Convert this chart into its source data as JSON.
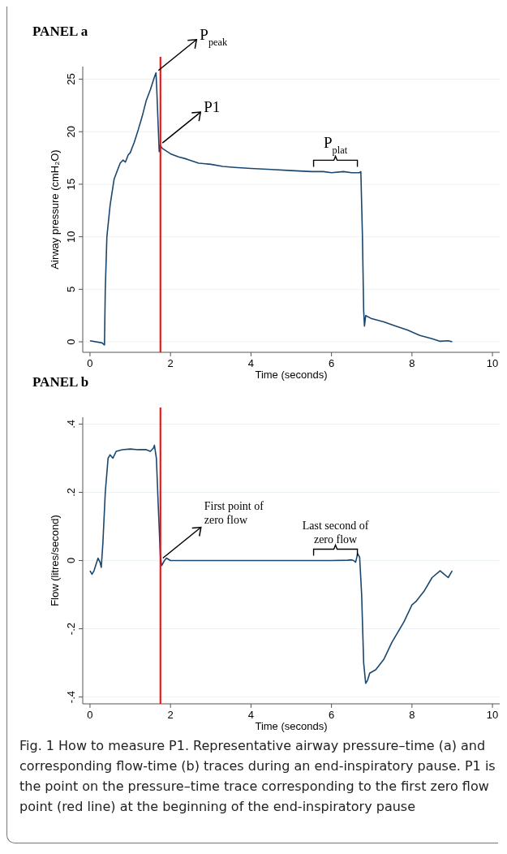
{
  "chart_data": [
    {
      "type": "line",
      "title": "PANEL a",
      "xlabel": "Time (seconds)",
      "ylabel": "Airway pressure (cmH₂O)",
      "xlim": [
        -0.18,
        10.18
      ],
      "ylim": [
        -1,
        26.2
      ],
      "xticks": [
        0,
        2,
        4,
        6,
        8,
        10
      ],
      "yticks": [
        0,
        5,
        10,
        15,
        20,
        25
      ],
      "grid": "y",
      "line_style": "solid",
      "series": [
        {
          "color": "#1a476f",
          "x": [
            0,
            0.3,
            0.36,
            0.38,
            0.42,
            0.5,
            0.6,
            0.65,
            0.75,
            0.82,
            0.88,
            0.95,
            1.0,
            1.1,
            1.2,
            1.3,
            1.4,
            1.5,
            1.6,
            1.64,
            1.66,
            1.7,
            1.72,
            1.74,
            1.8,
            2.0,
            2.2,
            2.4,
            2.7,
            3.0,
            3.3,
            3.6,
            4.0,
            4.5,
            5.0,
            5.5,
            5.8,
            6.0,
            6.3,
            6.5,
            6.7,
            6.73,
            6.77,
            6.8,
            6.82,
            6.85,
            7.0,
            7.3,
            7.6,
            7.9,
            8.2,
            8.5,
            8.7,
            8.9,
            9.0
          ],
          "values": [
            0.1,
            -0.1,
            -0.3,
            5,
            10,
            13,
            15.5,
            16,
            17,
            17.3,
            17.1,
            17.8,
            18,
            19,
            20.2,
            21.5,
            23,
            24,
            25.2,
            25.6,
            24,
            20,
            18.1,
            18.7,
            18.4,
            17.9,
            17.6,
            17.4,
            17.0,
            16.9,
            16.7,
            16.6,
            16.5,
            16.4,
            16.3,
            16.2,
            16.2,
            16.1,
            16.2,
            16.1,
            16.1,
            16.2,
            10,
            3,
            1.5,
            2.5,
            2.2,
            1.9,
            1.5,
            1.1,
            0.6,
            0.3,
            0.05,
            0.1,
            0
          ]
        }
      ],
      "ref_lines": [
        {
          "axis": "x",
          "value": 1.75,
          "color": "#ff0000"
        }
      ],
      "annotations": [
        {
          "text": "P$_{peak}$",
          "x": 1.64,
          "y": 25.6
        },
        {
          "text": "P1",
          "x": 1.74,
          "y": 18.7
        },
        {
          "text": "P$_{plat}$",
          "x": 6.1,
          "y": 16.2
        }
      ]
    },
    {
      "type": "line",
      "title": "PANEL b",
      "xlabel": "Time (seconds)",
      "ylabel": "Flow (litres/second)",
      "xlim": [
        -0.18,
        10.18
      ],
      "ylim": [
        -0.42,
        0.42
      ],
      "xticks": [
        0,
        2,
        4,
        6,
        8,
        10
      ],
      "yticks": [
        {
          "value": -0.4,
          "label": "-.4"
        },
        {
          "value": -0.2,
          "label": "-.2"
        },
        0,
        {
          "value": 0.2,
          "label": ".2"
        },
        {
          "value": 0.4,
          "label": ".4"
        }
      ],
      "grid": "y",
      "line_style": "solid",
      "series": [
        {
          "color": "#1a476f",
          "x": [
            0,
            0.05,
            0.1,
            0.2,
            0.25,
            0.28,
            0.32,
            0.38,
            0.45,
            0.5,
            0.57,
            0.65,
            0.8,
            1.0,
            1.2,
            1.4,
            1.5,
            1.58,
            1.6,
            1.65,
            1.7,
            1.75,
            1.78,
            1.85,
            1.9,
            2.0,
            3,
            4,
            5,
            6,
            6.4,
            6.5,
            6.55,
            6.6,
            6.65,
            6.7,
            6.75,
            6.8,
            6.85,
            6.9,
            6.95,
            7.1,
            7.3,
            7.5,
            7.8,
            8.0,
            8.1,
            8.3,
            8.5,
            8.7,
            8.8,
            8.9,
            9.0
          ],
          "values": [
            -0.03,
            -0.04,
            -0.03,
            0.007,
            -0.005,
            -0.02,
            0.05,
            0.2,
            0.3,
            0.31,
            0.3,
            0.32,
            0.325,
            0.327,
            0.325,
            0.325,
            0.32,
            0.33,
            0.338,
            0.3,
            0.15,
            0.01,
            -0.015,
            0,
            0.007,
            0,
            0,
            0,
            0,
            0,
            0.001,
            0.002,
            0,
            -0.005,
            0.02,
            0.01,
            -0.1,
            -0.3,
            -0.36,
            -0.35,
            -0.33,
            -0.32,
            -0.29,
            -0.24,
            -0.18,
            -0.13,
            -0.12,
            -0.09,
            -0.05,
            -0.03,
            -0.04,
            -0.05,
            -0.03
          ]
        }
      ],
      "ref_lines": [
        {
          "axis": "x",
          "value": 1.75,
          "color": "#ff0000"
        }
      ],
      "annotations": [
        {
          "text": "First point of zero flow",
          "x": 1.75,
          "y": 0
        },
        {
          "text": "Last second of zero flow",
          "x": 6.1,
          "y": 0
        },
        "Fig. 1  How to measure P1.  Representative airway pressure–time (a) and corresponding flow-time (b) traces during an end-inspiratory pause. P1 is the point on the pressure–time trace corresponding to the first zero flow point (red line) at the beginning of the end-inspiratory pause"
      ]
    }
  ]
}
